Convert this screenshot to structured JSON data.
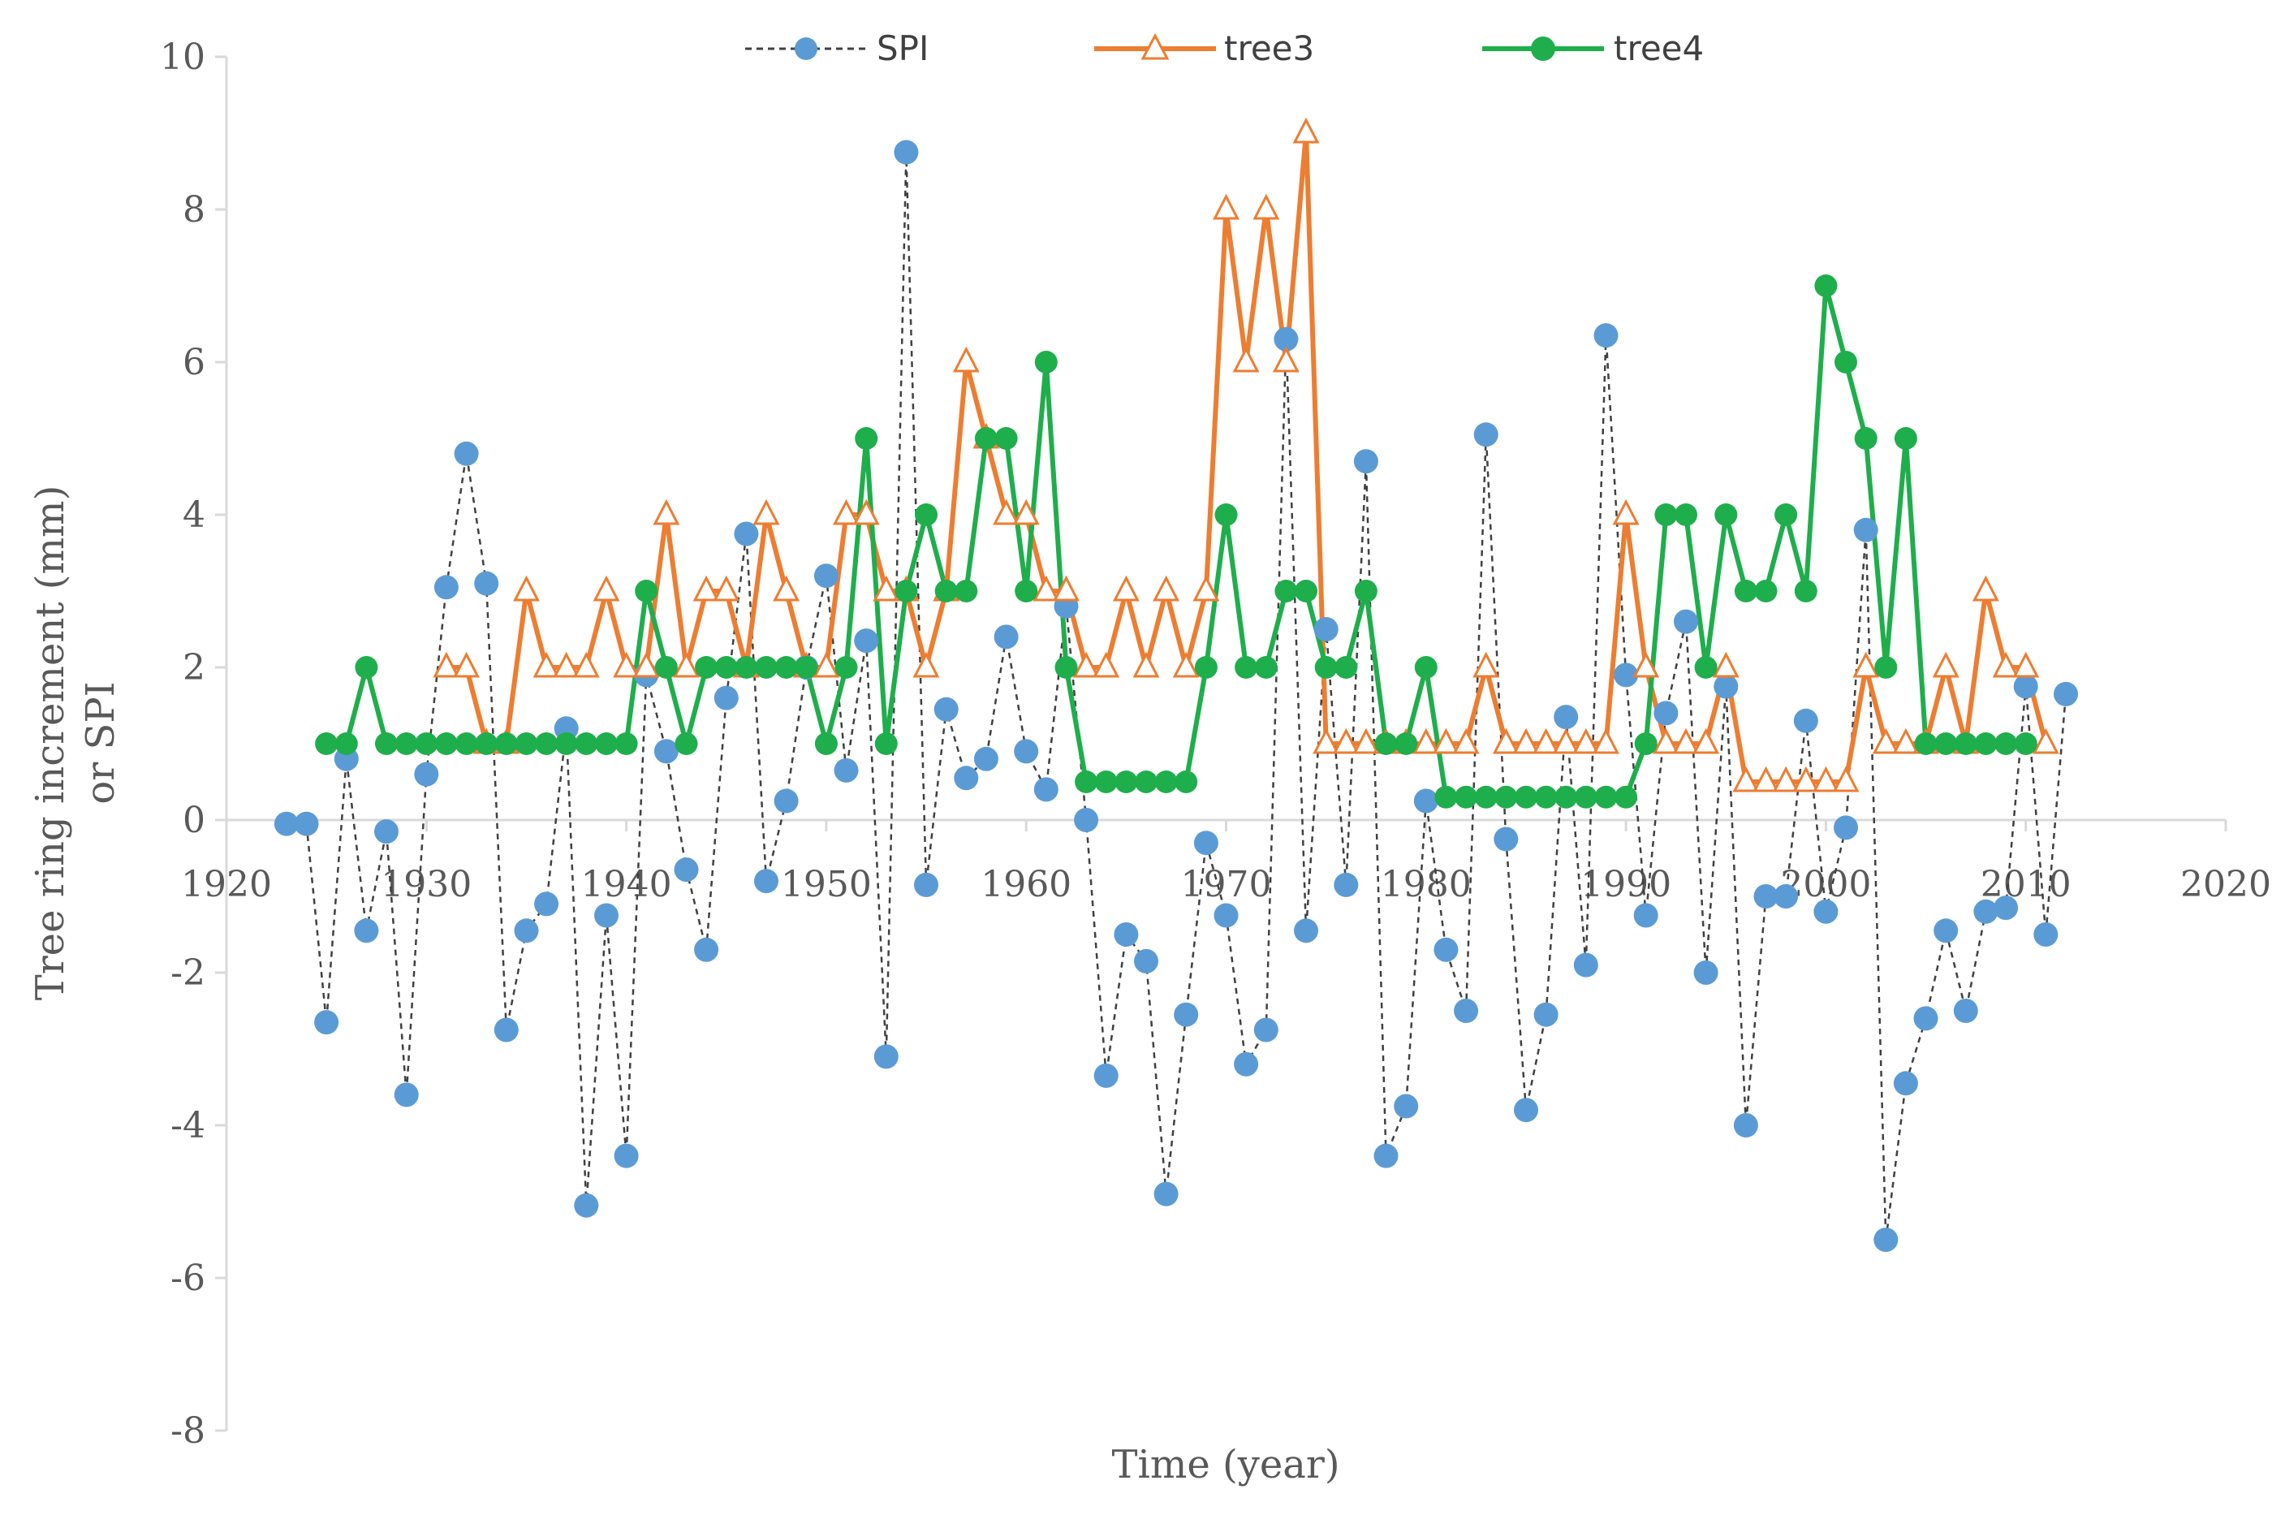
{
  "chart_data": {
    "type": "line",
    "title": "",
    "xlabel": "Time (year)",
    "ylabel_line1": "Tree ring increment (mm)",
    "ylabel_line2": "or SPI",
    "xlim": [
      1920,
      2020
    ],
    "ylim": [
      -8,
      10
    ],
    "xticks": [
      1920,
      1930,
      1940,
      1950,
      1960,
      1970,
      1980,
      1990,
      2000,
      2010,
      2020
    ],
    "yticks": [
      -8,
      -6,
      -4,
      -2,
      0,
      2,
      4,
      6,
      8,
      10
    ],
    "legend_position": "top-center",
    "colors": {
      "SPI": "#5B9BD5",
      "SPI_line": "#404040",
      "tree3": "#ED7D31",
      "tree4": "#1EAE4B",
      "axis": "#D9D9D9",
      "text": "#595959"
    },
    "series": [
      {
        "name": "SPI",
        "style": "dashed-circle",
        "x": [
          1923,
          1924,
          1925,
          1926,
          1927,
          1928,
          1929,
          1930,
          1931,
          1932,
          1933,
          1934,
          1935,
          1936,
          1937,
          1938,
          1939,
          1940,
          1941,
          1942,
          1943,
          1944,
          1945,
          1946,
          1947,
          1948,
          1949,
          1950,
          1951,
          1952,
          1953,
          1954,
          1955,
          1956,
          1957,
          1958,
          1959,
          1960,
          1961,
          1962,
          1963,
          1964,
          1965,
          1966,
          1967,
          1968,
          1969,
          1970,
          1971,
          1972,
          1973,
          1974,
          1975,
          1976,
          1977,
          1978,
          1979,
          1980,
          1981,
          1982,
          1983,
          1984,
          1985,
          1986,
          1987,
          1988,
          1989,
          1990,
          1991,
          1992,
          1993,
          1994,
          1995,
          1996,
          1997,
          1998,
          1999,
          2000,
          2001,
          2002,
          2003,
          2004,
          2005,
          2006,
          2007,
          2008,
          2009,
          2010,
          2011,
          2012
        ],
        "values": [
          -0.05,
          -0.05,
          -2.65,
          0.8,
          -1.45,
          -0.15,
          -3.6,
          0.6,
          3.05,
          4.8,
          3.1,
          -2.75,
          -1.45,
          -1.1,
          1.2,
          -5.05,
          -1.25,
          -4.4,
          1.9,
          0.9,
          -0.65,
          -1.7,
          1.6,
          3.75,
          -0.8,
          0.25,
          2,
          3.2,
          0.65,
          2.35,
          -3.1,
          8.75,
          -0.85,
          1.45,
          0.55,
          0.8,
          2.4,
          0.9,
          0.4,
          2.8,
          0.0,
          -3.35,
          -1.5,
          -1.85,
          -4.9,
          -2.55,
          -0.3,
          -1.25,
          -3.2,
          -2.75,
          6.3,
          -1.45,
          2.5,
          -0.85,
          4.7,
          -4.4,
          -3.75,
          0.25,
          -1.7,
          -2.5,
          5.05,
          -0.25,
          -3.8,
          -2.55,
          1.35,
          -1.9,
          6.35,
          1.9,
          -1.25,
          1.4,
          2.6,
          -2.0,
          1.75,
          -4.0,
          -1.0,
          -1.0,
          1.3,
          -1.2,
          -0.1,
          3.8,
          -5.5,
          -3.45,
          -2.6,
          -1.45,
          -2.5,
          -1.2,
          -1.15,
          1.75,
          -1.5,
          1.65
        ]
      },
      {
        "name": "tree3",
        "style": "solid-triangle",
        "x": [
          1931,
          1932,
          1933,
          1934,
          1935,
          1936,
          1937,
          1938,
          1939,
          1940,
          1941,
          1942,
          1943,
          1944,
          1945,
          1946,
          1947,
          1948,
          1949,
          1950,
          1951,
          1952,
          1953,
          1954,
          1955,
          1956,
          1957,
          1958,
          1959,
          1960,
          1961,
          1962,
          1963,
          1964,
          1965,
          1966,
          1967,
          1968,
          1969,
          1970,
          1971,
          1972,
          1973,
          1974,
          1975,
          1976,
          1977,
          1978,
          1979,
          1980,
          1981,
          1982,
          1983,
          1984,
          1985,
          1986,
          1987,
          1988,
          1989,
          1990,
          1991,
          1992,
          1993,
          1994,
          1995,
          1996,
          1997,
          1998,
          1999,
          2000,
          2001,
          2002,
          2003,
          2004,
          2005,
          2006,
          2007,
          2008,
          2009,
          2010,
          2011
        ],
        "values": [
          2,
          2,
          1,
          1,
          3,
          2,
          2,
          2,
          3,
          2,
          2,
          4,
          2,
          3,
          3,
          2,
          4,
          3,
          2,
          2,
          4,
          4,
          3,
          3,
          2,
          3,
          6,
          5,
          4,
          4,
          3,
          3,
          2,
          2,
          3,
          2,
          3,
          2,
          3,
          8,
          6,
          8,
          6,
          9,
          1,
          1,
          1,
          1,
          1,
          1,
          1,
          1,
          2,
          1,
          1,
          1,
          1,
          1,
          1,
          4,
          2,
          1,
          1,
          1,
          2,
          0.5,
          0.5,
          0.5,
          0.5,
          0.5,
          0.5,
          2,
          1,
          1,
          1,
          2,
          1,
          3,
          2,
          2,
          1
        ]
      },
      {
        "name": "tree4",
        "style": "solid-circle",
        "x": [
          1925,
          1926,
          1927,
          1928,
          1929,
          1930,
          1931,
          1932,
          1933,
          1934,
          1935,
          1936,
          1937,
          1938,
          1939,
          1940,
          1941,
          1942,
          1943,
          1944,
          1945,
          1946,
          1947,
          1948,
          1949,
          1950,
          1951,
          1952,
          1953,
          1954,
          1955,
          1956,
          1957,
          1958,
          1959,
          1960,
          1961,
          1962,
          1963,
          1964,
          1965,
          1966,
          1967,
          1968,
          1969,
          1970,
          1971,
          1972,
          1973,
          1974,
          1975,
          1976,
          1977,
          1978,
          1979,
          1980,
          1981,
          1982,
          1983,
          1984,
          1985,
          1986,
          1987,
          1988,
          1989,
          1990,
          1991,
          1992,
          1993,
          1994,
          1995,
          1996,
          1997,
          1998,
          1999,
          2000,
          2001,
          2002,
          2003,
          2004,
          2005,
          2006,
          2007,
          2008,
          2009,
          2010
        ],
        "values": [
          1,
          1,
          2,
          1,
          1,
          1,
          1,
          1,
          1,
          1,
          1,
          1,
          1,
          1,
          1,
          1,
          3,
          2,
          1,
          2,
          2,
          2,
          2,
          2,
          2,
          1,
          2,
          5,
          1,
          3,
          4,
          3,
          3,
          5,
          5,
          3,
          6,
          2,
          0.5,
          0.5,
          0.5,
          0.5,
          0.5,
          0.5,
          2,
          4,
          2,
          2,
          3,
          3,
          2,
          2,
          3,
          1,
          1,
          2,
          0.3,
          0.3,
          0.3,
          0.3,
          0.3,
          0.3,
          0.3,
          0.3,
          0.3,
          0.3,
          1,
          4,
          4,
          2,
          4,
          3,
          3,
          4,
          3,
          7,
          6,
          5,
          2,
          5,
          1,
          1,
          1,
          1,
          1,
          1
        ]
      }
    ]
  }
}
